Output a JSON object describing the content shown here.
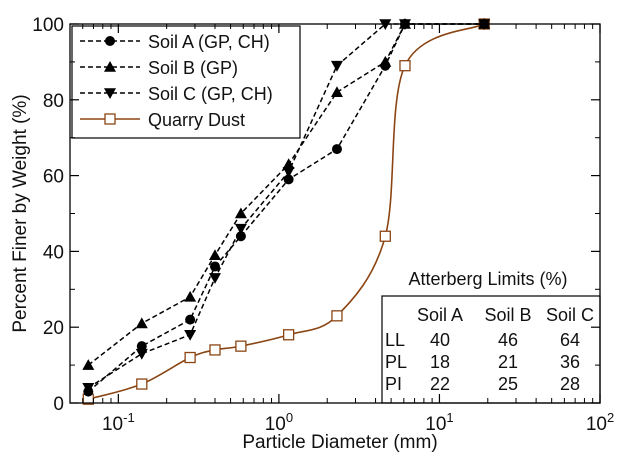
{
  "chart_data": {
    "type": "line",
    "xlabel": "Particle Diameter (mm)",
    "ylabel": "Percent Finer by Weight (%)",
    "xscale": "log",
    "xlim": [
      0.05,
      100
    ],
    "ylim": [
      0,
      100
    ],
    "x_ticks": [
      {
        "value": 0.1,
        "base": "10",
        "exp": "-1"
      },
      {
        "value": 1,
        "base": "10",
        "exp": "0"
      },
      {
        "value": 10,
        "base": "10",
        "exp": "1"
      },
      {
        "value": 100,
        "base": "10",
        "exp": "2"
      }
    ],
    "y_ticks": [
      0,
      20,
      40,
      60,
      80,
      100
    ],
    "grid": false,
    "legend_position": "top-left",
    "series": [
      {
        "name": "Soil A (GP, CH)",
        "marker": "circle",
        "line_style": "dashed",
        "color": "#000000",
        "x": [
          0.065,
          0.14,
          0.28,
          0.4,
          0.58,
          1.15,
          2.3,
          4.6,
          6.1,
          19
        ],
        "y": [
          3,
          15,
          22,
          36,
          44,
          59,
          67,
          89,
          100,
          100
        ]
      },
      {
        "name": "Soil B (GP)",
        "marker": "triangle-up",
        "line_style": "dashed",
        "color": "#000000",
        "x": [
          0.065,
          0.14,
          0.28,
          0.4,
          0.58,
          1.15,
          2.3,
          4.6,
          6.1,
          19
        ],
        "y": [
          10,
          21,
          28,
          39,
          50,
          63,
          82,
          90,
          100,
          100
        ]
      },
      {
        "name": "Soil C (GP, CH)",
        "marker": "triangle-down",
        "line_style": "dashed",
        "color": "#000000",
        "x": [
          0.065,
          0.14,
          0.28,
          0.4,
          0.58,
          1.15,
          2.3,
          4.6,
          6.1,
          19
        ],
        "y": [
          4,
          13,
          18,
          33,
          46,
          61,
          89,
          100,
          100,
          100
        ]
      },
      {
        "name": "Quarry Dust",
        "marker": "square-open",
        "line_style": "solid",
        "color": "#8B4513",
        "x": [
          0.065,
          0.14,
          0.28,
          0.4,
          0.58,
          1.15,
          2.3,
          4.6,
          6.1,
          19
        ],
        "y": [
          1,
          5,
          12,
          14,
          15,
          18,
          23,
          44,
          89,
          100
        ]
      }
    ],
    "table": {
      "title": "Atterberg Limits (%)",
      "columns": [
        "",
        "Soil A",
        "Soil B",
        "Soil C"
      ],
      "rows": [
        [
          "LL",
          "40",
          "46",
          "64"
        ],
        [
          "PL",
          "18",
          "21",
          "36"
        ],
        [
          "PI",
          "22",
          "25",
          "28"
        ]
      ]
    }
  }
}
